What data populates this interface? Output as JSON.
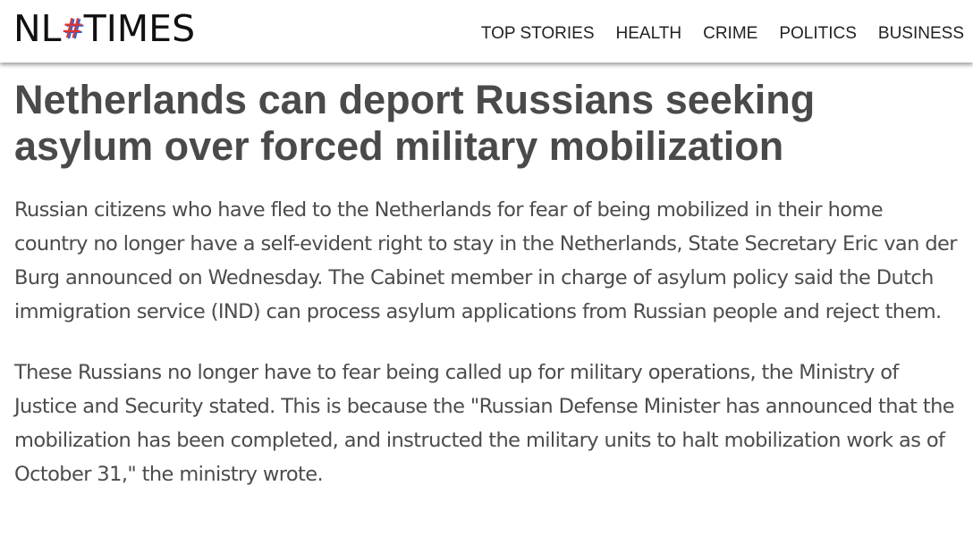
{
  "logo": {
    "left": "NL",
    "hash": "#",
    "right": "TIMES"
  },
  "nav": [
    "TOP STORIES",
    "HEALTH",
    "CRIME",
    "POLITICS",
    "BUSINESS"
  ],
  "article": {
    "title": "Netherlands can deport Russians seeking asylum over forced military mobilization",
    "paragraphs": [
      "Russian citizens who have fled to the Netherlands for fear of being mobilized in their home country no longer have a self-evident right to stay in the Netherlands, State Secretary Eric van der Burg announced on Wednesday. The Cabinet member in charge of asylum policy said the Dutch immigration service (IND) can process asylum applications from Russian people and reject them.",
      "These Russians no longer have to fear being called up for military operations, the Ministry of Justice and Security stated. This is because the \"Russian Defense Minister has announced that the mobilization has been completed, and instructed the military units to halt mobilization work as of October 31,\" the ministry wrote."
    ]
  }
}
